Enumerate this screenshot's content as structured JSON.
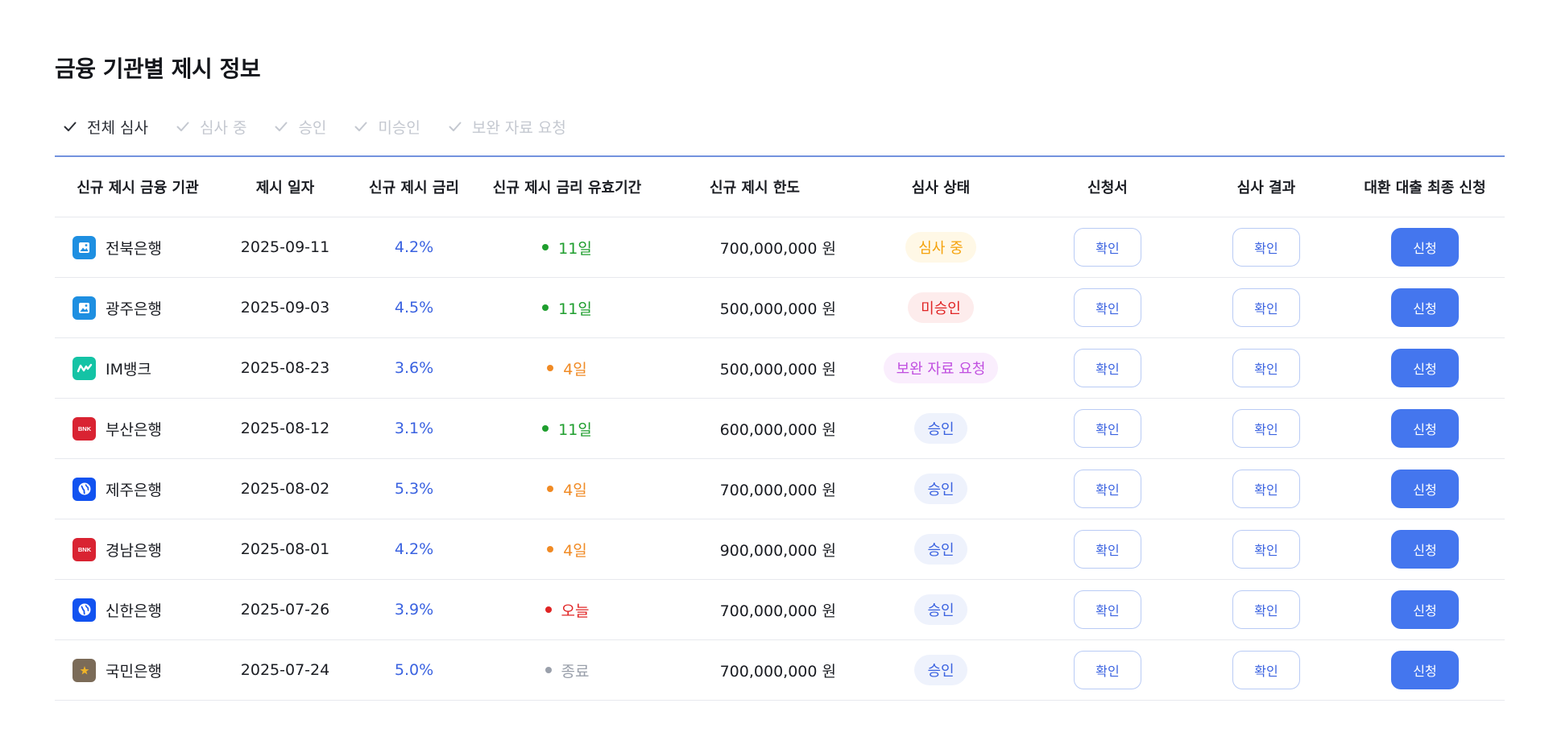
{
  "page": {
    "title": "금융 기관별 제시 정보"
  },
  "filters": [
    {
      "label": "전체 심사",
      "active": true
    },
    {
      "label": "심사 중",
      "active": false
    },
    {
      "label": "승인",
      "active": false
    },
    {
      "label": "미승인",
      "active": false
    },
    {
      "label": "보완 자료 요청",
      "active": false
    }
  ],
  "table": {
    "headers": [
      "신규 제시 금융 기관",
      "제시 일자",
      "신규 제시 금리",
      "신규 제시 금리 유효기간",
      "신규 제시 한도",
      "심사 상태",
      "신청서",
      "심사 결과",
      "대환 대출 최종 신청"
    ],
    "rows": [
      {
        "bank": "전북은행",
        "logo_color": "#1e8fe1",
        "logo_icon": "image-icon",
        "date": "2025-09-11",
        "rate": "4.2%",
        "period": "11일",
        "period_color": "#1f9e2e",
        "limit": "700,000,000 원",
        "status": "심사 중",
        "status_color": "#f5a20b",
        "status_bg": "#fff8e6",
        "application_label": "확인",
        "result_label": "확인",
        "apply_label": "신청"
      },
      {
        "bank": "광주은행",
        "logo_color": "#1e8fe1",
        "logo_icon": "image-icon",
        "date": "2025-09-03",
        "rate": "4.5%",
        "period": "11일",
        "period_color": "#1f9e2e",
        "limit": "500,000,000 원",
        "status": "미승인",
        "status_color": "#e02424",
        "status_bg": "#fdecec",
        "application_label": "확인",
        "result_label": "확인",
        "apply_label": "신청"
      },
      {
        "bank": "IM뱅크",
        "logo_color": "#14c3a5",
        "logo_icon": "wave-icon",
        "date": "2025-08-23",
        "rate": "3.6%",
        "period": "4일",
        "period_color": "#f08a24",
        "limit": "500,000,000 원",
        "status": "보완 자료 요청",
        "status_color": "#c04ee0",
        "status_bg": "#faeefd",
        "application_label": "확인",
        "result_label": "확인",
        "apply_label": "신청"
      },
      {
        "bank": "부산은행",
        "logo_color": "#d92332",
        "logo_icon": "bnk-icon",
        "date": "2025-08-12",
        "rate": "3.1%",
        "period": "11일",
        "period_color": "#1f9e2e",
        "limit": "600,000,000 원",
        "status": "승인",
        "status_color": "#3a62e0",
        "status_bg": "#eef2fc",
        "application_label": "확인",
        "result_label": "확인",
        "apply_label": "신청"
      },
      {
        "bank": "제주은행",
        "logo_color": "#1152f0",
        "logo_icon": "globe-icon",
        "date": "2025-08-02",
        "rate": "5.3%",
        "period": "4일",
        "period_color": "#f08a24",
        "limit": "700,000,000 원",
        "status": "승인",
        "status_color": "#3a62e0",
        "status_bg": "#eef2fc",
        "application_label": "확인",
        "result_label": "확인",
        "apply_label": "신청"
      },
      {
        "bank": "경남은행",
        "logo_color": "#d92332",
        "logo_icon": "bnk-icon",
        "date": "2025-08-01",
        "rate": "4.2%",
        "period": "4일",
        "period_color": "#f08a24",
        "limit": "900,000,000 원",
        "status": "승인",
        "status_color": "#3a62e0",
        "status_bg": "#eef2fc",
        "application_label": "확인",
        "result_label": "확인",
        "apply_label": "신청"
      },
      {
        "bank": "신한은행",
        "logo_color": "#1152f0",
        "logo_icon": "globe-icon",
        "date": "2025-07-26",
        "rate": "3.9%",
        "period": "오늘",
        "period_color": "#e02424",
        "limit": "700,000,000 원",
        "status": "승인",
        "status_color": "#3a62e0",
        "status_bg": "#eef2fc",
        "application_label": "확인",
        "result_label": "확인",
        "apply_label": "신청"
      },
      {
        "bank": "국민은행",
        "logo_color": "#7b6b58",
        "logo_icon": "star-icon",
        "date": "2025-07-24",
        "rate": "5.0%",
        "period": "종료",
        "period_color": "#9aa0ab",
        "limit": "700,000,000 원",
        "status": "승인",
        "status_color": "#3a62e0",
        "status_bg": "#eef2fc",
        "application_label": "확인",
        "result_label": "확인",
        "apply_label": "신청"
      }
    ]
  },
  "colors": {
    "accent": "#4476ee",
    "rate": "#3a62e0",
    "filter_inactive": "#c4c8d0",
    "filter_active": "#2a2d34"
  }
}
